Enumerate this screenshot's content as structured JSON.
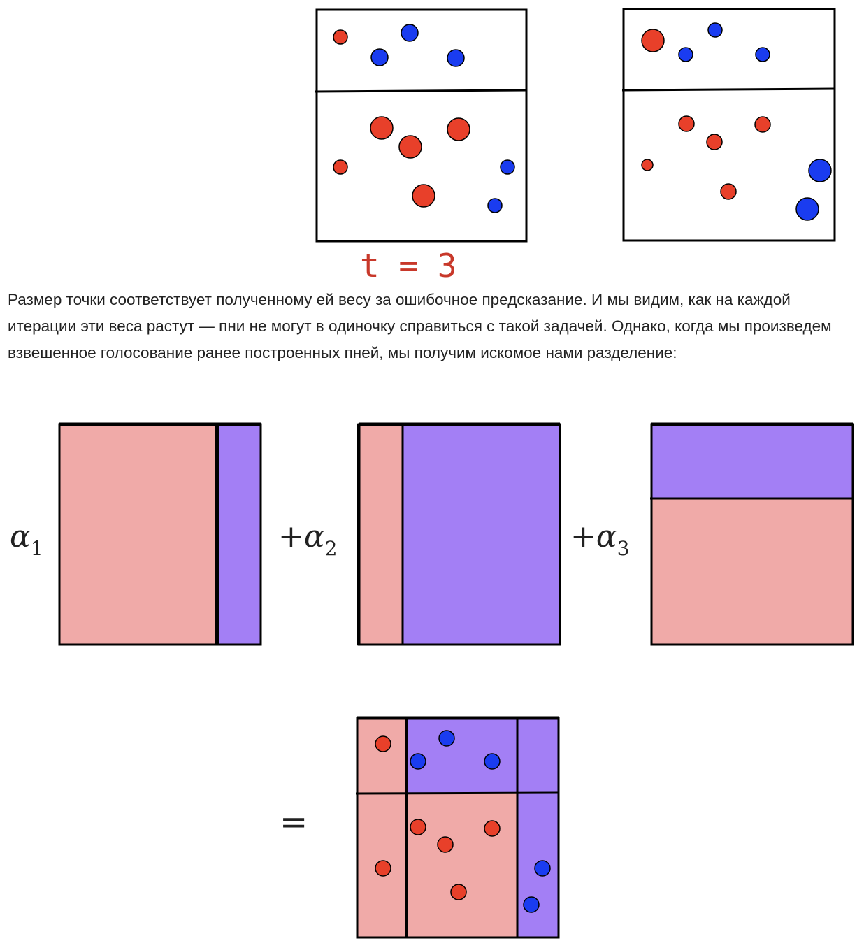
{
  "top_panels": {
    "caption": "t = 3",
    "caption_color": "#c8382a"
  },
  "paragraph": "Размер точки соответствует полученному ей весу за ошибочное предсказание. И мы видим, как на каждой итерации эти веса растут — пни не могут в одиночку справиться с такой задачей. Однако, когда мы произведем взвешенное голосование ранее построенных пней, мы получим искомое нами разделение:",
  "equation": {
    "alpha_symbol": "α",
    "plus": "+",
    "equals": "=",
    "index_1": "1",
    "index_2": "2",
    "index_3": "3"
  },
  "colors": {
    "red_point": "#e8402a",
    "blue_point": "#1a3cf0",
    "pink_region": "#f0aaa8",
    "purple_region": "#a37ff5",
    "border": "#000000"
  },
  "point_classes": [
    "red",
    "blue"
  ]
}
